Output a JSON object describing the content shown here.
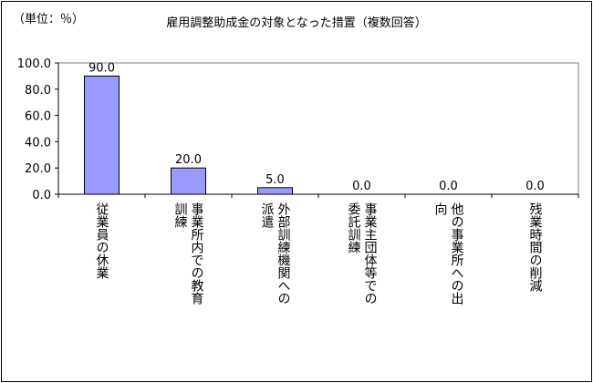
{
  "chart_data": {
    "type": "bar",
    "title": "雇用調整助成金の対象となった措置（複数回答）",
    "unit_label": "（単位：％）",
    "categories": [
      [
        "従業員の休業"
      ],
      [
        "事業所内での教育",
        "訓練"
      ],
      [
        "外部訓練機関への",
        "派遣"
      ],
      [
        "事業主団体等での",
        "委託訓練"
      ],
      [
        "他の事業所への出",
        "向"
      ],
      [
        "残業時間の削減"
      ]
    ],
    "values": [
      90.0,
      20.0,
      5.0,
      0.0,
      0.0,
      0.0
    ],
    "value_labels": [
      "90.0",
      "20.0",
      "5.0",
      "0.0",
      "0.0",
      "0.0"
    ],
    "y_ticks": [
      "0.0",
      "20.0",
      "40.0",
      "60.0",
      "80.0",
      "100.0"
    ],
    "ylim": [
      0,
      100
    ],
    "grid": false,
    "colors": {
      "bar_fill": "#9999ff",
      "bar_stroke": "#000000"
    }
  }
}
